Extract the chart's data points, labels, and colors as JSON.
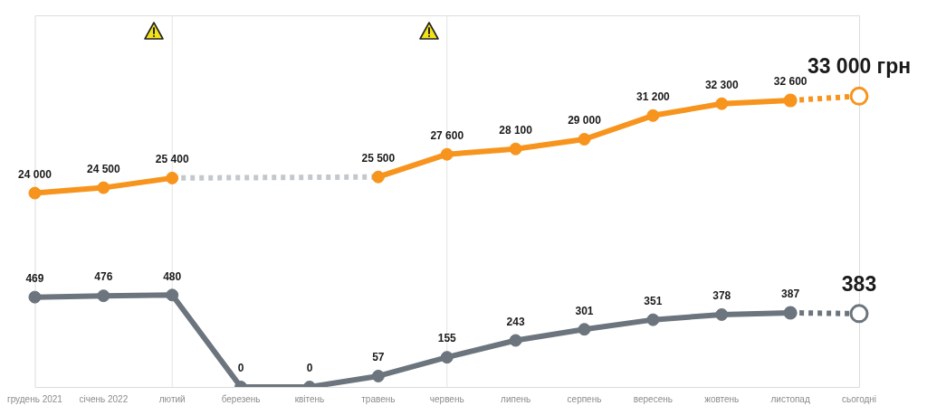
{
  "chart_data": {
    "type": "line",
    "categories": [
      "грудень 2021",
      "січень 2022",
      "лютий",
      "березень",
      "квітень",
      "травень",
      "червень",
      "липень",
      "серпень",
      "вересень",
      "жовтень",
      "листопад",
      "сьогодні"
    ],
    "series": [
      {
        "color": "#f7941d",
        "marker": "circle",
        "line_style": "solid",
        "values": [
          24000,
          24500,
          25400,
          null,
          null,
          25500,
          27600,
          28100,
          29000,
          31200,
          32300,
          32600,
          null
        ],
        "value_labels": [
          "24 000",
          "24 500",
          "25 400",
          null,
          null,
          "25 500",
          "27 600",
          "28 100",
          "29 000",
          "31 200",
          "32 300",
          "32 600",
          null
        ]
      },
      {
        "color": "#c3c8cd",
        "marker": "none",
        "line_style": "dotted",
        "values": [
          null,
          null,
          25400,
          null,
          null,
          25500,
          null,
          null,
          null,
          null,
          null,
          null,
          null
        ]
      },
      {
        "color": "#f7941d",
        "marker": "circle",
        "line_style": "dotted",
        "values": [
          null,
          null,
          null,
          null,
          null,
          null,
          null,
          null,
          null,
          null,
          null,
          32600,
          33000
        ],
        "value_labels": [
          null,
          null,
          null,
          null,
          null,
          null,
          null,
          null,
          null,
          null,
          null,
          null,
          "33 000 грн"
        ]
      },
      {
        "color": "#6c757d",
        "axis": "y2",
        "marker": "circle",
        "line_style": "solid",
        "values": [
          469,
          476,
          480,
          0,
          0,
          57,
          155,
          243,
          301,
          351,
          378,
          387,
          null
        ],
        "value_labels": [
          "469",
          "476",
          "480",
          "0",
          "0",
          "57",
          "155",
          "243",
          "301",
          "351",
          "378",
          "387",
          null
        ]
      },
      {
        "color": "#6c757d",
        "axis": "y2",
        "marker": "circle",
        "line_style": "dotted",
        "values": [
          null,
          null,
          null,
          null,
          null,
          null,
          null,
          null,
          null,
          null,
          null,
          387,
          383
        ],
        "value_labels": [
          null,
          null,
          null,
          null,
          null,
          null,
          null,
          null,
          null,
          null,
          null,
          null,
          "383"
        ]
      }
    ],
    "ylim": [
      6000,
      40500
    ],
    "y2lim": [
      0,
      1940
    ],
    "tick_labels": "x",
    "legend": false,
    "ref_lines": [
      {
        "axis": "x",
        "value": "лютий",
        "color": "#e3e3e3"
      },
      {
        "axis": "x",
        "value": "червень",
        "color": "#e3e3e3"
      }
    ]
  }
}
